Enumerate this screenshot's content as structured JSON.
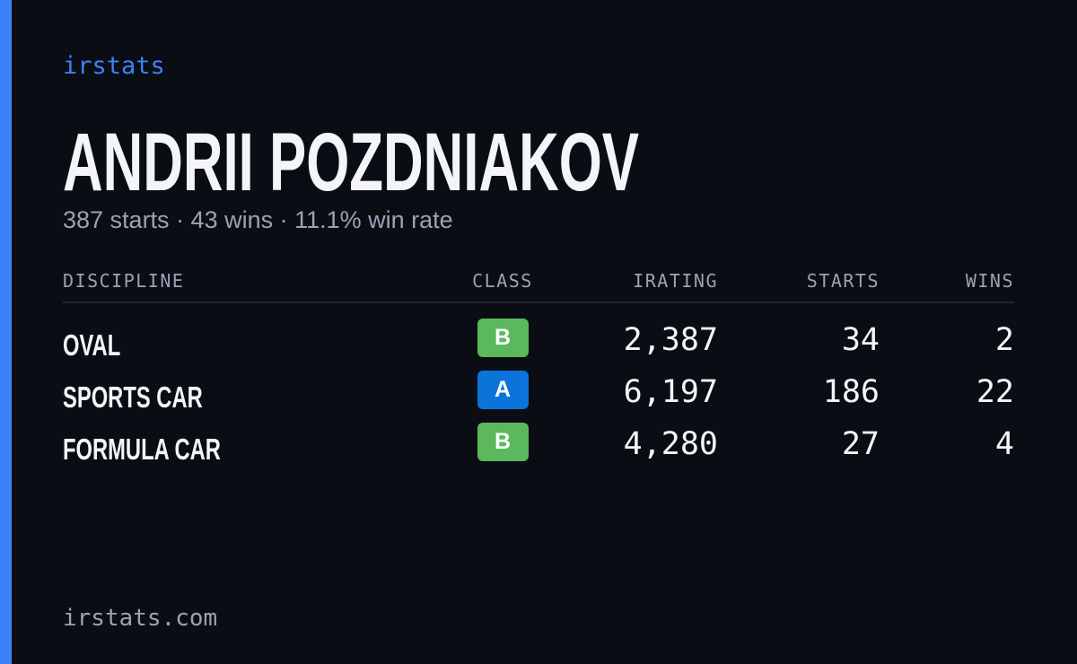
{
  "brand": "irstats",
  "driver": {
    "name": "ANDRII POZDNIAKOV",
    "summary": "387 starts · 43 wins · 11.1% win rate"
  },
  "table": {
    "headers": [
      "DISCIPLINE",
      "CLASS",
      "IRATING",
      "STARTS",
      "WINS"
    ],
    "rows": [
      {
        "discipline": "OVAL",
        "class": "B",
        "class_color": "#5cb85c",
        "irating": "2,387",
        "starts": "34",
        "wins": "2"
      },
      {
        "discipline": "SPORTS CAR",
        "class": "A",
        "class_color": "#0a74da",
        "irating": "6,197",
        "starts": "186",
        "wins": "22"
      },
      {
        "discipline": "FORMULA CAR",
        "class": "B",
        "class_color": "#5cb85c",
        "irating": "4,280",
        "starts": "27",
        "wins": "4"
      }
    ]
  },
  "footer": "irstats.com"
}
